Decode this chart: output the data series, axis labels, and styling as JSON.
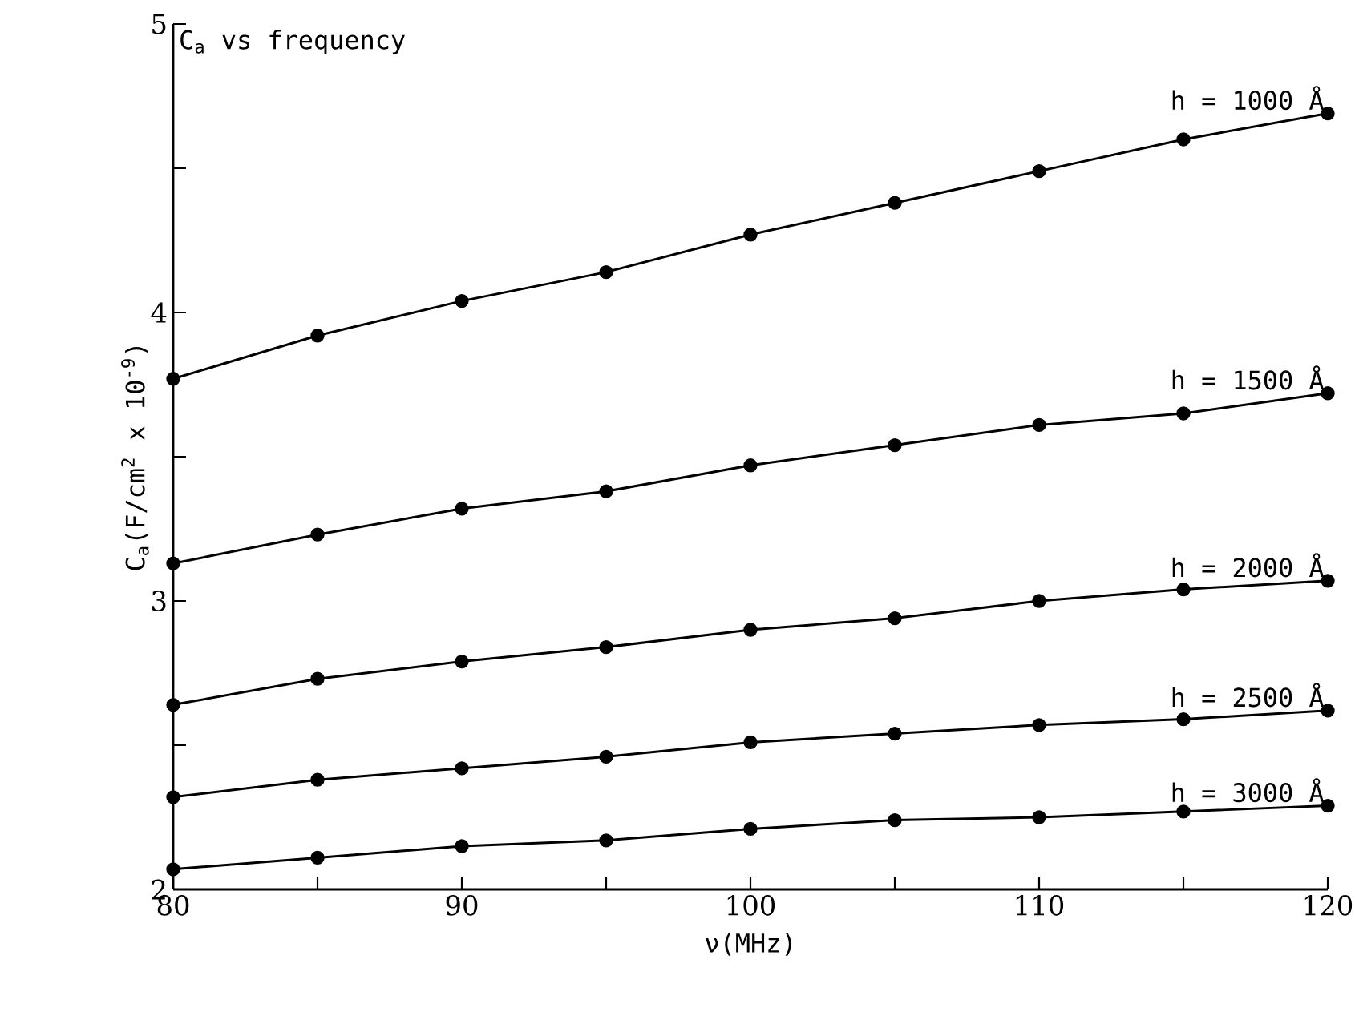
{
  "chart_data": {
    "type": "line",
    "title": "C$_{a}$ vs frequency",
    "xlabel": "ν(MHz)",
    "ylabel": "C$_{a}$(F/cm$^{2}$ x 10$^{-9}$)",
    "x": [
      80,
      85,
      90,
      95,
      100,
      105,
      110,
      115,
      120
    ],
    "series": [
      {
        "name": "h = 1000 Å",
        "color": "#000000",
        "values": [
          3.77,
          3.92,
          4.04,
          4.14,
          4.27,
          4.38,
          4.49,
          4.6,
          4.69
        ]
      },
      {
        "name": "h = 1500 Å",
        "color": "#000000",
        "values": [
          3.13,
          3.23,
          3.32,
          3.38,
          3.47,
          3.54,
          3.61,
          3.65,
          3.72
        ]
      },
      {
        "name": "h = 2000 Å",
        "color": "#000000",
        "values": [
          2.64,
          2.73,
          2.79,
          2.84,
          2.9,
          2.94,
          3.0,
          3.04,
          3.07
        ]
      },
      {
        "name": "h = 2500 Å",
        "color": "#000000",
        "values": [
          2.32,
          2.38,
          2.42,
          2.46,
          2.51,
          2.54,
          2.57,
          2.59,
          2.62
        ]
      },
      {
        "name": "h = 3000 Å",
        "color": "#000000",
        "values": [
          2.07,
          2.11,
          2.15,
          2.17,
          2.21,
          2.24,
          2.25,
          2.27,
          2.29
        ]
      }
    ],
    "xlim": [
      80,
      120
    ],
    "ylim": [
      2,
      5
    ],
    "xticks": [
      80,
      {
        "value": 85,
        "label": null
      },
      90,
      {
        "value": 95,
        "label": null
      },
      100,
      {
        "value": 105,
        "label": null
      },
      110,
      {
        "value": 115,
        "label": null
      },
      120
    ],
    "yticks": [
      2,
      {
        "value": 2.5,
        "label": null
      },
      3,
      {
        "value": 3.5,
        "label": null
      },
      4,
      {
        "value": 4.5,
        "label": null
      },
      5
    ],
    "grid": false,
    "legend": false,
    "marker": "circle",
    "line_style": "solid"
  }
}
